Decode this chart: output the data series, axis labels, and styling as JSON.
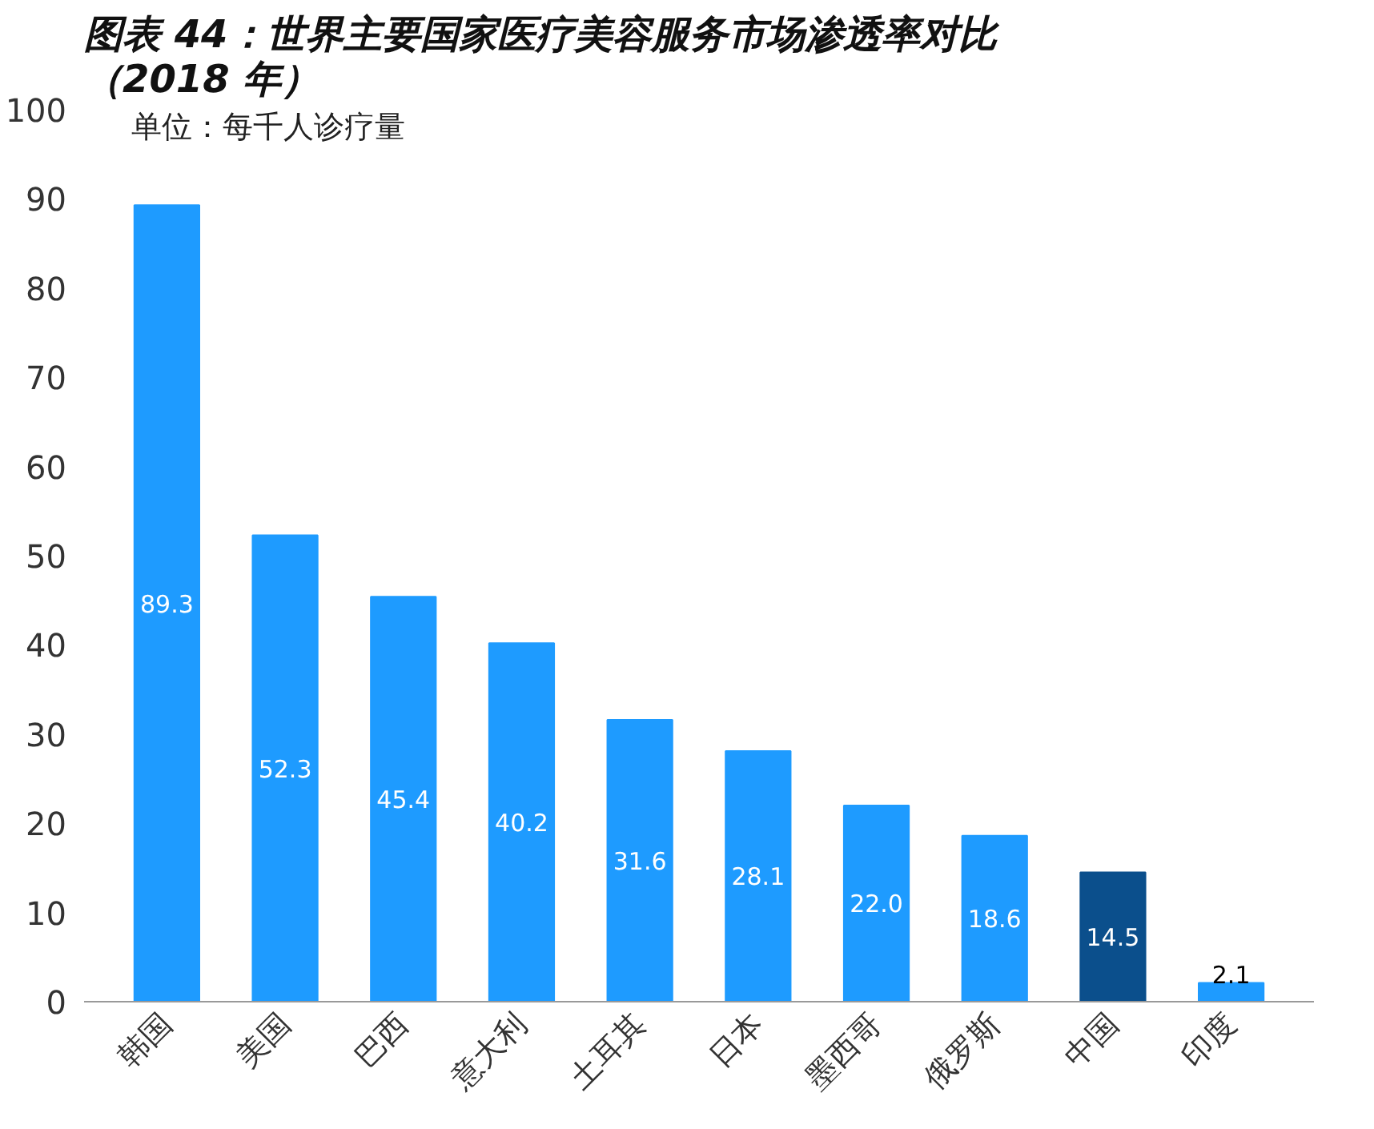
{
  "chart_data": {
    "type": "bar",
    "title": "图表 44：世界主要国家医疗美容服务市场渗透率对比（2018 年）",
    "annotations": [
      "单位：每千人诊疗量"
    ],
    "categories": [
      "韩国",
      "美国",
      "巴西",
      "意大利",
      "土耳其",
      "日本",
      "墨西哥",
      "俄罗斯",
      "中国",
      "印度"
    ],
    "values": [
      89.3,
      52.3,
      45.4,
      40.2,
      31.6,
      28.1,
      22.0,
      18.6,
      14.5,
      2.1
    ],
    "colors": [
      "#1e9bff",
      "#1e9bff",
      "#1e9bff",
      "#1e9bff",
      "#1e9bff",
      "#1e9bff",
      "#1e9bff",
      "#1e9bff",
      "#0b4f8c",
      "#1e9bff"
    ],
    "ylim": [
      0,
      100
    ],
    "yticks": [
      0,
      10,
      20,
      30,
      40,
      50,
      60,
      70,
      80,
      90,
      100
    ],
    "value_labels": [
      "89.3",
      "52.3",
      "45.4",
      "40.2",
      "31.6",
      "28.1",
      "22.0",
      "18.6",
      "14.5",
      "2.1"
    ],
    "grid": false
  }
}
